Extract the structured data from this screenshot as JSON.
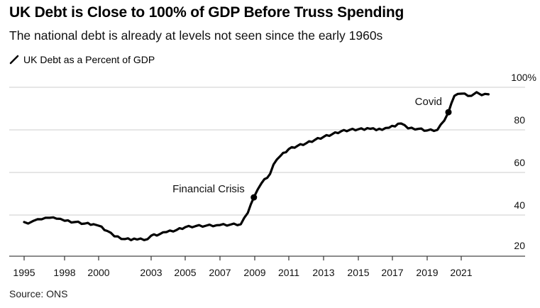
{
  "chart_data": {
    "type": "line",
    "title": "UK Debt is Close to 100% of GDP Before Truss Spending",
    "subtitle": "The national debt is already at levels not seen since the early 1960s",
    "xlabel": "",
    "ylabel": "",
    "source": "Source: ONS",
    "legend": {
      "placement": "top-left",
      "entries": [
        "UK Debt as a Percent of GDP"
      ]
    },
    "grid": true,
    "ylim": [
      20,
      100
    ],
    "y_ticks": [
      {
        "value": 100,
        "label": "100%"
      },
      {
        "value": 80,
        "label": "80"
      },
      {
        "value": 60,
        "label": "60"
      },
      {
        "value": 40,
        "label": "40"
      },
      {
        "value": 20,
        "label": "20"
      }
    ],
    "x_ticks": [
      {
        "value": 1995,
        "label": "1995"
      },
      {
        "value": 1998,
        "label": "1998"
      },
      {
        "value": 2000,
        "label": "2000"
      },
      {
        "value": 2003,
        "label": "2003"
      },
      {
        "value": 2005,
        "label": "2005"
      },
      {
        "value": 2007,
        "label": "2007"
      },
      {
        "value": 2009,
        "label": "2009"
      },
      {
        "value": 2011,
        "label": "2011"
      },
      {
        "value": 2013,
        "label": "2013"
      },
      {
        "value": 2015,
        "label": "2015"
      },
      {
        "value": 2017,
        "label": "2017"
      },
      {
        "value": 2019,
        "label": "2019"
      },
      {
        "value": 2021,
        "label": "2021"
      }
    ],
    "series": [
      {
        "name": "UK Debt as a Percent of GDP",
        "color": "#000000",
        "points": [
          [
            1995.0,
            36.7
          ],
          [
            1995.3,
            36.0
          ],
          [
            1995.7,
            37.3
          ],
          [
            1996.3,
            38.0
          ],
          [
            1996.9,
            38.7
          ],
          [
            1997.4,
            38.3
          ],
          [
            1998.0,
            37.3
          ],
          [
            1998.6,
            36.7
          ],
          [
            1999.2,
            36.0
          ],
          [
            1999.7,
            35.7
          ],
          [
            2000.0,
            35.0
          ],
          [
            2000.5,
            32.5
          ],
          [
            2000.9,
            30.0
          ],
          [
            2001.5,
            28.7
          ],
          [
            2002.2,
            28.5
          ],
          [
            2002.8,
            28.7
          ],
          [
            2003.0,
            30.3
          ],
          [
            2003.5,
            31.0
          ],
          [
            2003.9,
            32.0
          ],
          [
            2004.5,
            33.0
          ],
          [
            2005.0,
            34.3
          ],
          [
            2005.6,
            34.8
          ],
          [
            2006.2,
            35.0
          ],
          [
            2006.8,
            35.2
          ],
          [
            2007.0,
            35.3
          ],
          [
            2007.6,
            35.5
          ],
          [
            2008.2,
            35.7
          ],
          [
            2008.6,
            41.0
          ],
          [
            2008.95,
            48.3
          ],
          [
            2009.4,
            55.0
          ],
          [
            2009.9,
            59.3
          ],
          [
            2010.1,
            63.7
          ],
          [
            2010.5,
            67.7
          ],
          [
            2011.0,
            71.0
          ],
          [
            2011.5,
            72.5
          ],
          [
            2012.0,
            73.7
          ],
          [
            2012.5,
            75.3
          ],
          [
            2013.0,
            76.7
          ],
          [
            2013.5,
            78.0
          ],
          [
            2014.0,
            79.3
          ],
          [
            2014.5,
            80.0
          ],
          [
            2015.0,
            80.3
          ],
          [
            2015.7,
            80.5
          ],
          [
            2016.4,
            80.0
          ],
          [
            2016.8,
            81.0
          ],
          [
            2017.5,
            83.0
          ],
          [
            2017.9,
            80.7
          ],
          [
            2018.5,
            80.5
          ],
          [
            2019.0,
            79.7
          ],
          [
            2019.6,
            80.0
          ],
          [
            2020.0,
            84.3
          ],
          [
            2020.25,
            88.3
          ],
          [
            2020.6,
            96.0
          ],
          [
            2021.0,
            97.0
          ],
          [
            2021.6,
            96.0
          ],
          [
            2021.9,
            97.7
          ],
          [
            2022.2,
            96.3
          ],
          [
            2022.6,
            96.7
          ]
        ]
      }
    ],
    "annotations": [
      {
        "label": "Financial Crisis",
        "x": 2008.95,
        "y": 48.3
      },
      {
        "label": "Covid",
        "x": 2020.25,
        "y": 88.3
      }
    ]
  }
}
